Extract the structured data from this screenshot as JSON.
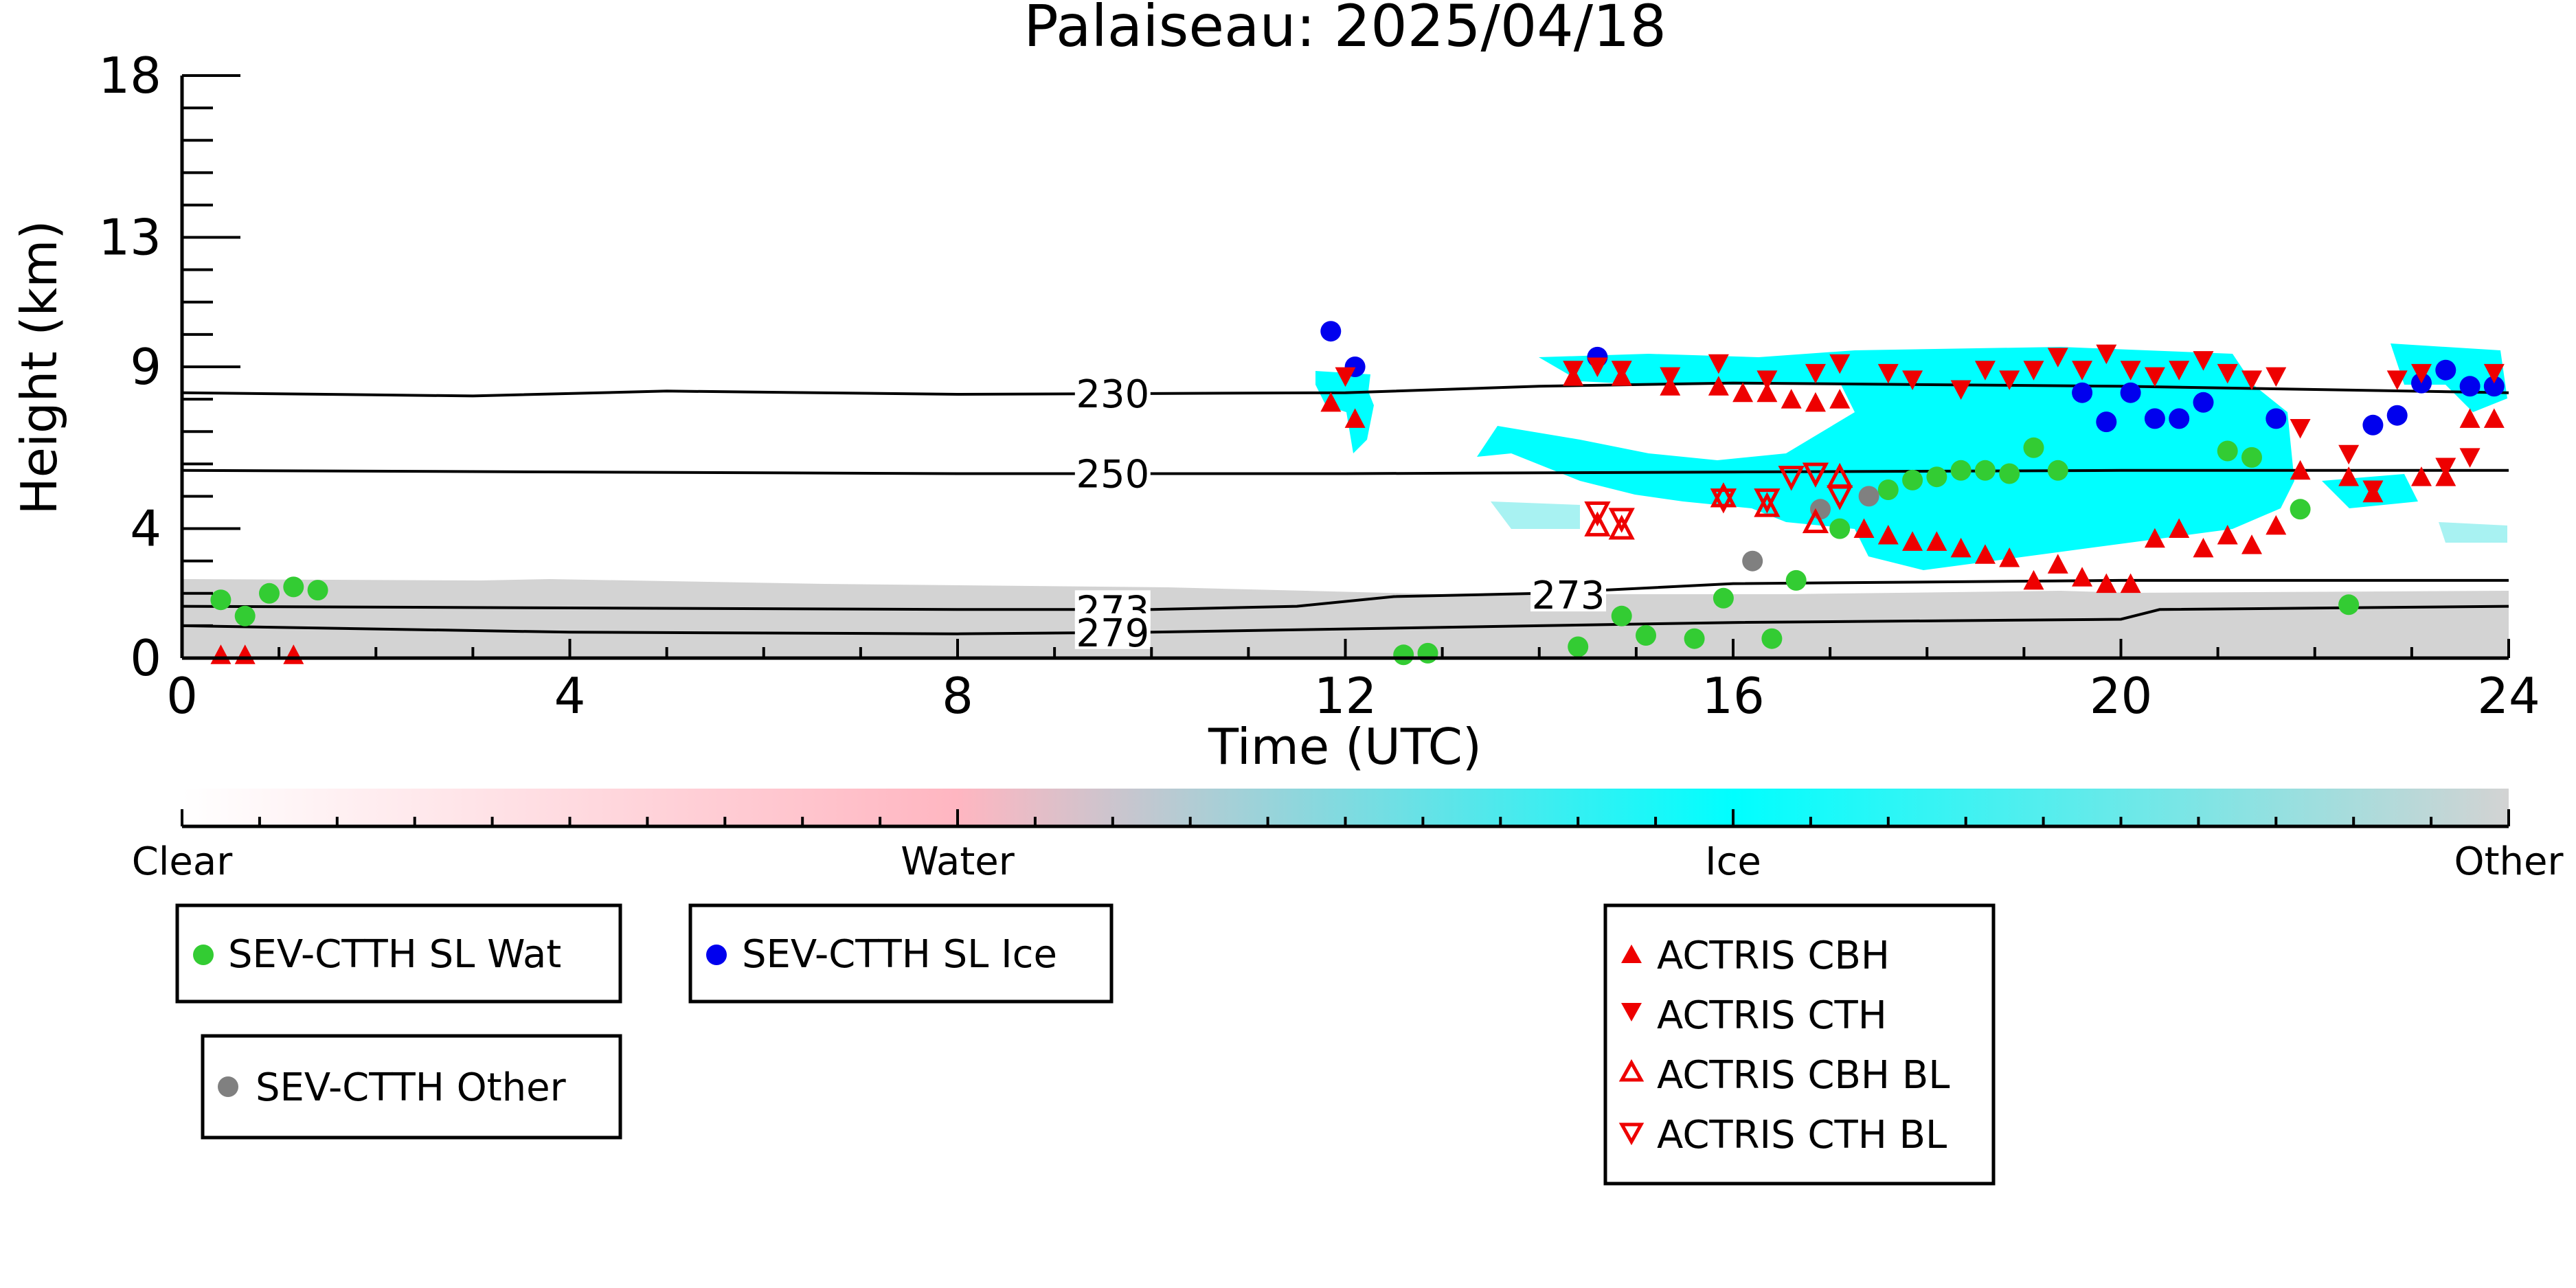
{
  "chart_data": {
    "type": "scatter",
    "title": "Palaiseau: 2025/04/18",
    "xlabel": "Time (UTC)",
    "ylabel": "Height (km)",
    "xlim": [
      0,
      24
    ],
    "ylim": [
      0,
      18
    ],
    "x_ticks": [
      0,
      4,
      8,
      12,
      16,
      20,
      24
    ],
    "y_ticks": [
      0,
      4,
      9,
      13,
      18
    ],
    "grid": false,
    "colorbar": {
      "labels": [
        "Clear",
        "Water",
        "Ice",
        "Other"
      ],
      "colors": [
        "#ffffff",
        "#ffb6c1",
        "#00ffff",
        "#d3d3d3"
      ]
    },
    "contours": [
      {
        "label": "230",
        "x": [
          0,
          3,
          5,
          8,
          12,
          14,
          16,
          20,
          24
        ],
        "y": [
          8.2,
          8.1,
          8.25,
          8.15,
          8.2,
          8.4,
          8.5,
          8.4,
          8.2
        ]
      },
      {
        "label": "250",
        "x": [
          0,
          4,
          8,
          12,
          16,
          20,
          24
        ],
        "y": [
          5.8,
          5.75,
          5.7,
          5.7,
          5.75,
          5.8,
          5.8
        ]
      },
      {
        "label": "273",
        "x": [
          0,
          4,
          8,
          10,
          11.5,
          12.5,
          14,
          16,
          20,
          24
        ],
        "y": [
          1.6,
          1.55,
          1.5,
          1.5,
          1.6,
          1.9,
          2.0,
          2.3,
          2.4,
          2.4
        ]
      },
      {
        "label": "279",
        "x": [
          0,
          4,
          8,
          10,
          12,
          14,
          16,
          20,
          20.4,
          24
        ],
        "y": [
          1.0,
          0.8,
          0.75,
          0.8,
          0.9,
          1.0,
          1.1,
          1.2,
          1.5,
          1.6
        ]
      }
    ],
    "series": [
      {
        "name": "SEV-CTTH SL Wat",
        "color": "#33cc33",
        "marker": "circle",
        "x": [
          0.4,
          0.65,
          0.9,
          1.15,
          1.4,
          12.6,
          12.85,
          14.4,
          14.85,
          15.1,
          15.6,
          15.9,
          16.4,
          16.65,
          17.1,
          17.6,
          17.85,
          18.1,
          18.35,
          18.6,
          18.85,
          19.1,
          19.35,
          21.1,
          21.35,
          21.85,
          22.35
        ],
        "y": [
          1.8,
          1.3,
          2.0,
          2.2,
          2.1,
          0.1,
          0.15,
          0.35,
          1.3,
          0.7,
          0.6,
          1.85,
          0.6,
          2.4,
          4.0,
          5.2,
          5.5,
          5.6,
          5.8,
          5.8,
          5.7,
          6.5,
          5.8,
          6.4,
          6.2,
          4.6,
          1.65
        ]
      },
      {
        "name": "SEV-CTTH SL Ice",
        "color": "#0000ee",
        "marker": "circle",
        "x": [
          11.85,
          12.1,
          14.6,
          19.6,
          19.85,
          20.1,
          20.35,
          20.6,
          20.85,
          21.6,
          22.6,
          22.85,
          23.1,
          23.35,
          23.6,
          23.85
        ],
        "y": [
          10.1,
          9.0,
          9.3,
          8.2,
          7.3,
          8.2,
          7.4,
          7.4,
          7.9,
          7.4,
          7.2,
          7.5,
          8.5,
          8.9,
          8.4,
          8.4
        ]
      },
      {
        "name": "SEV-CTTH Other",
        "color": "#808080",
        "marker": "circle",
        "x": [
          16.2,
          16.9,
          17.4
        ],
        "y": [
          3.0,
          4.6,
          5.0
        ]
      }
    ],
    "actris_markers": [
      {
        "name": "ACTRIS CBH",
        "color": "#ee0000",
        "marker": "triangle-up-filled",
        "x": [
          0.4,
          0.65,
          1.15,
          11.85,
          12.1,
          14.35,
          14.85,
          15.35,
          15.85,
          16.1,
          16.35,
          16.6,
          16.85,
          17.1,
          17.35,
          17.6,
          17.85,
          18.1,
          18.35,
          18.6,
          18.85,
          19.1,
          19.35,
          19.6,
          19.85,
          20.1,
          20.35,
          20.6,
          20.85,
          21.1,
          21.35,
          21.6,
          21.85,
          22.35,
          22.6,
          23.1,
          23.35,
          23.6,
          23.85
        ],
        "y": [
          0.1,
          0.1,
          0.1,
          7.9,
          7.4,
          8.7,
          8.7,
          8.4,
          8.4,
          8.2,
          8.2,
          8.0,
          7.9,
          8.0,
          4.0,
          3.8,
          3.6,
          3.6,
          3.4,
          3.2,
          3.1,
          2.4,
          2.9,
          2.5,
          2.3,
          2.3,
          3.7,
          4.0,
          3.4,
          3.8,
          3.5,
          4.1,
          5.8,
          5.6,
          5.1,
          5.6,
          5.6,
          7.4,
          7.4
        ]
      },
      {
        "name": "ACTRIS CTH",
        "color": "#ee0000",
        "marker": "triangle-down-filled",
        "x": [
          12.0,
          14.35,
          14.6,
          14.85,
          15.35,
          15.85,
          16.35,
          16.85,
          17.1,
          17.6,
          17.85,
          18.35,
          18.6,
          18.85,
          19.1,
          19.35,
          19.6,
          19.85,
          20.1,
          20.35,
          20.6,
          20.85,
          21.1,
          21.35,
          21.6,
          21.85,
          22.35,
          22.6,
          22.85,
          23.1,
          23.35,
          23.6,
          23.85
        ],
        "y": [
          8.7,
          8.9,
          9.0,
          8.9,
          8.7,
          9.1,
          8.6,
          8.8,
          9.1,
          8.8,
          8.6,
          8.3,
          8.9,
          8.6,
          8.9,
          9.3,
          8.9,
          9.4,
          8.9,
          8.7,
          8.9,
          9.2,
          8.8,
          8.6,
          8.7,
          7.1,
          6.3,
          5.2,
          8.6,
          8.8,
          5.9,
          6.2,
          8.8
        ]
      },
      {
        "name": "ACTRIS CBH BL",
        "color": "#ee0000",
        "marker": "triangle-up-open",
        "x": [
          14.6,
          14.85,
          15.9,
          16.35,
          16.85,
          17.1
        ],
        "y": [
          4.1,
          4.0,
          5.0,
          4.7,
          4.2,
          5.6
        ]
      },
      {
        "name": "ACTRIS CTH BL",
        "color": "#ee0000",
        "marker": "triangle-down-open",
        "x": [
          14.6,
          14.85,
          15.9,
          16.35,
          16.6,
          16.85,
          17.1
        ],
        "y": [
          4.5,
          4.3,
          4.9,
          4.9,
          5.6,
          5.7,
          5.0
        ]
      }
    ]
  },
  "legend": {
    "wat_label": "SEV-CTTH SL Wat",
    "ice_label": "SEV-CTTH SL Ice",
    "other_label": "SEV-CTTH Other",
    "cbh_label": "ACTRIS CBH",
    "cth_label": "ACTRIS CTH",
    "cbh_bl_label": "ACTRIS CBH BL",
    "cth_bl_label": "ACTRIS CTH BL"
  }
}
